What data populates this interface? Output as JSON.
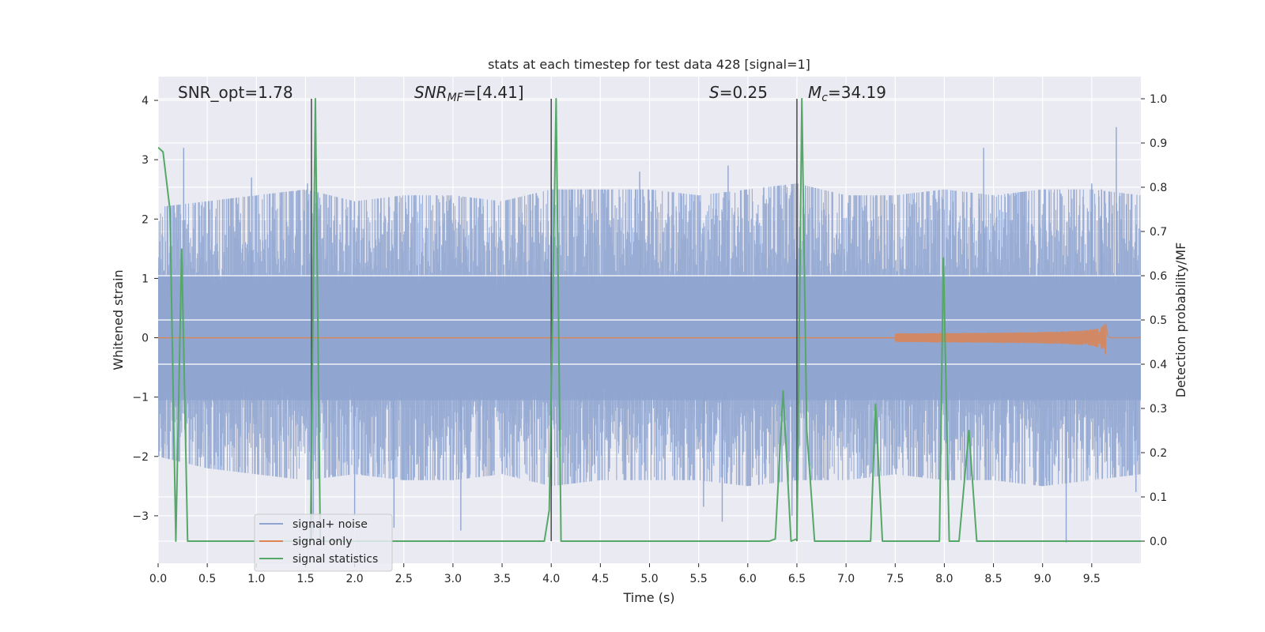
{
  "chart_data": {
    "type": "line",
    "title": "stats at each timestep for test data 428 [signal=1]",
    "xlabel": "Time (s)",
    "ylabel": "Whitened strain",
    "y2label": "Detection probability/MF",
    "xlim": [
      0,
      10
    ],
    "ylim": [
      -3.8,
      4.4
    ],
    "y2lim": [
      -0.05,
      1.05
    ],
    "xticks": [
      0.0,
      0.5,
      1.0,
      1.5,
      2.0,
      2.5,
      3.0,
      3.5,
      4.0,
      4.5,
      5.0,
      5.5,
      6.0,
      6.5,
      7.0,
      7.5,
      8.0,
      8.5,
      9.0,
      9.5
    ],
    "xtick_labels": [
      "0.0",
      "0.5",
      "1.0",
      "1.5",
      "2.0",
      "2.5",
      "3.0",
      "3.5",
      "4.0",
      "4.5",
      "5.0",
      "5.5",
      "6.0",
      "6.5",
      "7.0",
      "7.5",
      "8.0",
      "8.5",
      "9.0",
      "9.5"
    ],
    "yticks": [
      -3,
      -2,
      -1,
      0,
      1,
      2,
      3,
      4
    ],
    "ytick_labels": [
      "−3",
      "−2",
      "−1",
      "0",
      "1",
      "2",
      "3",
      "4"
    ],
    "y2ticks": [
      0.0,
      0.1,
      0.2,
      0.3,
      0.4,
      0.5,
      0.6,
      0.7,
      0.8,
      0.9,
      1.0
    ],
    "y2tick_labels": [
      "0.0",
      "0.1",
      "0.2",
      "0.3",
      "0.4",
      "0.5",
      "0.6",
      "0.7",
      "0.8",
      "0.9",
      "1.0"
    ],
    "grid": true,
    "legend_position": "lower-left",
    "annotations": {
      "snr_opt": "SNR_opt=1.78",
      "snr_mf_main": "SNR",
      "snr_mf_sub": "MF",
      "snr_mf_value": "=[4.41]",
      "s_sym": "S",
      "s_value": "=0.25",
      "mc_main": "M",
      "mc_sub": "c",
      "mc_value": "=34.19"
    },
    "vlines": [
      1.56,
      4.0,
      6.5
    ],
    "series": [
      {
        "name": "signal+ noise",
        "color": "#8fa5d0",
        "axis": "left",
        "envelope": {
          "x": [
            0.0,
            0.5,
            1.0,
            1.5,
            2.0,
            2.5,
            3.0,
            3.5,
            4.0,
            4.5,
            5.0,
            5.5,
            6.0,
            6.5,
            7.0,
            7.5,
            8.0,
            8.5,
            9.0,
            9.5,
            10.0
          ],
          "upper": [
            2.2,
            2.3,
            2.4,
            2.5,
            2.3,
            2.4,
            2.4,
            2.3,
            2.5,
            2.5,
            2.5,
            2.4,
            2.5,
            2.6,
            2.4,
            2.4,
            2.5,
            2.4,
            2.5,
            2.5,
            2.4
          ],
          "lower": [
            -2.0,
            -2.2,
            -2.3,
            -2.4,
            -2.3,
            -2.4,
            -2.4,
            -2.3,
            -2.5,
            -2.4,
            -2.4,
            -2.4,
            -2.5,
            -2.4,
            -2.4,
            -2.3,
            -2.4,
            -2.4,
            -2.5,
            -2.4,
            -2.3
          ]
        },
        "peaks": [
          {
            "x": 0.26,
            "y": 3.2
          },
          {
            "x": 0.95,
            "y": 2.7
          },
          {
            "x": 1.52,
            "y": 2.6
          },
          {
            "x": 4.9,
            "y": 2.8
          },
          {
            "x": 5.8,
            "y": 2.9
          },
          {
            "x": 8.4,
            "y": 3.2
          },
          {
            "x": 9.5,
            "y": 2.6
          },
          {
            "x": 9.6,
            "y": 2.5
          },
          {
            "x": 9.75,
            "y": 3.55
          },
          {
            "x": 1.58,
            "y": -3.3
          },
          {
            "x": 2.0,
            "y": -3.0
          },
          {
            "x": 2.4,
            "y": -3.2
          },
          {
            "x": 3.08,
            "y": -3.25
          },
          {
            "x": 5.55,
            "y": -2.85
          },
          {
            "x": 5.74,
            "y": -3.1
          },
          {
            "x": 6.45,
            "y": -3.0
          },
          {
            "x": 9.24,
            "y": -3.45
          },
          {
            "x": 9.95,
            "y": -2.6
          }
        ]
      },
      {
        "name": "signal only",
        "color": "#dd8452",
        "axis": "left",
        "chirp": {
          "start": 7.5,
          "merger": 9.65,
          "end": 9.7,
          "peak_amplitude": 0.35
        }
      },
      {
        "name": "signal statistics",
        "color": "#55a868",
        "axis": "right",
        "x": [
          0.0,
          0.05,
          0.12,
          0.18,
          0.24,
          0.3,
          1.55,
          1.6,
          1.65,
          3.93,
          3.98,
          4.05,
          4.1,
          6.22,
          6.28,
          6.36,
          6.44,
          6.5,
          6.55,
          6.6,
          6.68,
          7.25,
          7.3,
          7.37,
          7.95,
          7.99,
          8.05,
          8.15,
          8.25,
          8.33,
          10.0
        ],
        "y": [
          0.89,
          0.88,
          0.75,
          0.0,
          0.66,
          0.0,
          0.0,
          1.0,
          0.0,
          0.0,
          0.07,
          1.0,
          0.0,
          0.0,
          0.005,
          0.34,
          0.0,
          0.005,
          1.0,
          0.25,
          0.0,
          0.0,
          0.31,
          0.0,
          0.0,
          0.64,
          0.0,
          0.0,
          0.25,
          0.0,
          0.0
        ]
      }
    ]
  }
}
